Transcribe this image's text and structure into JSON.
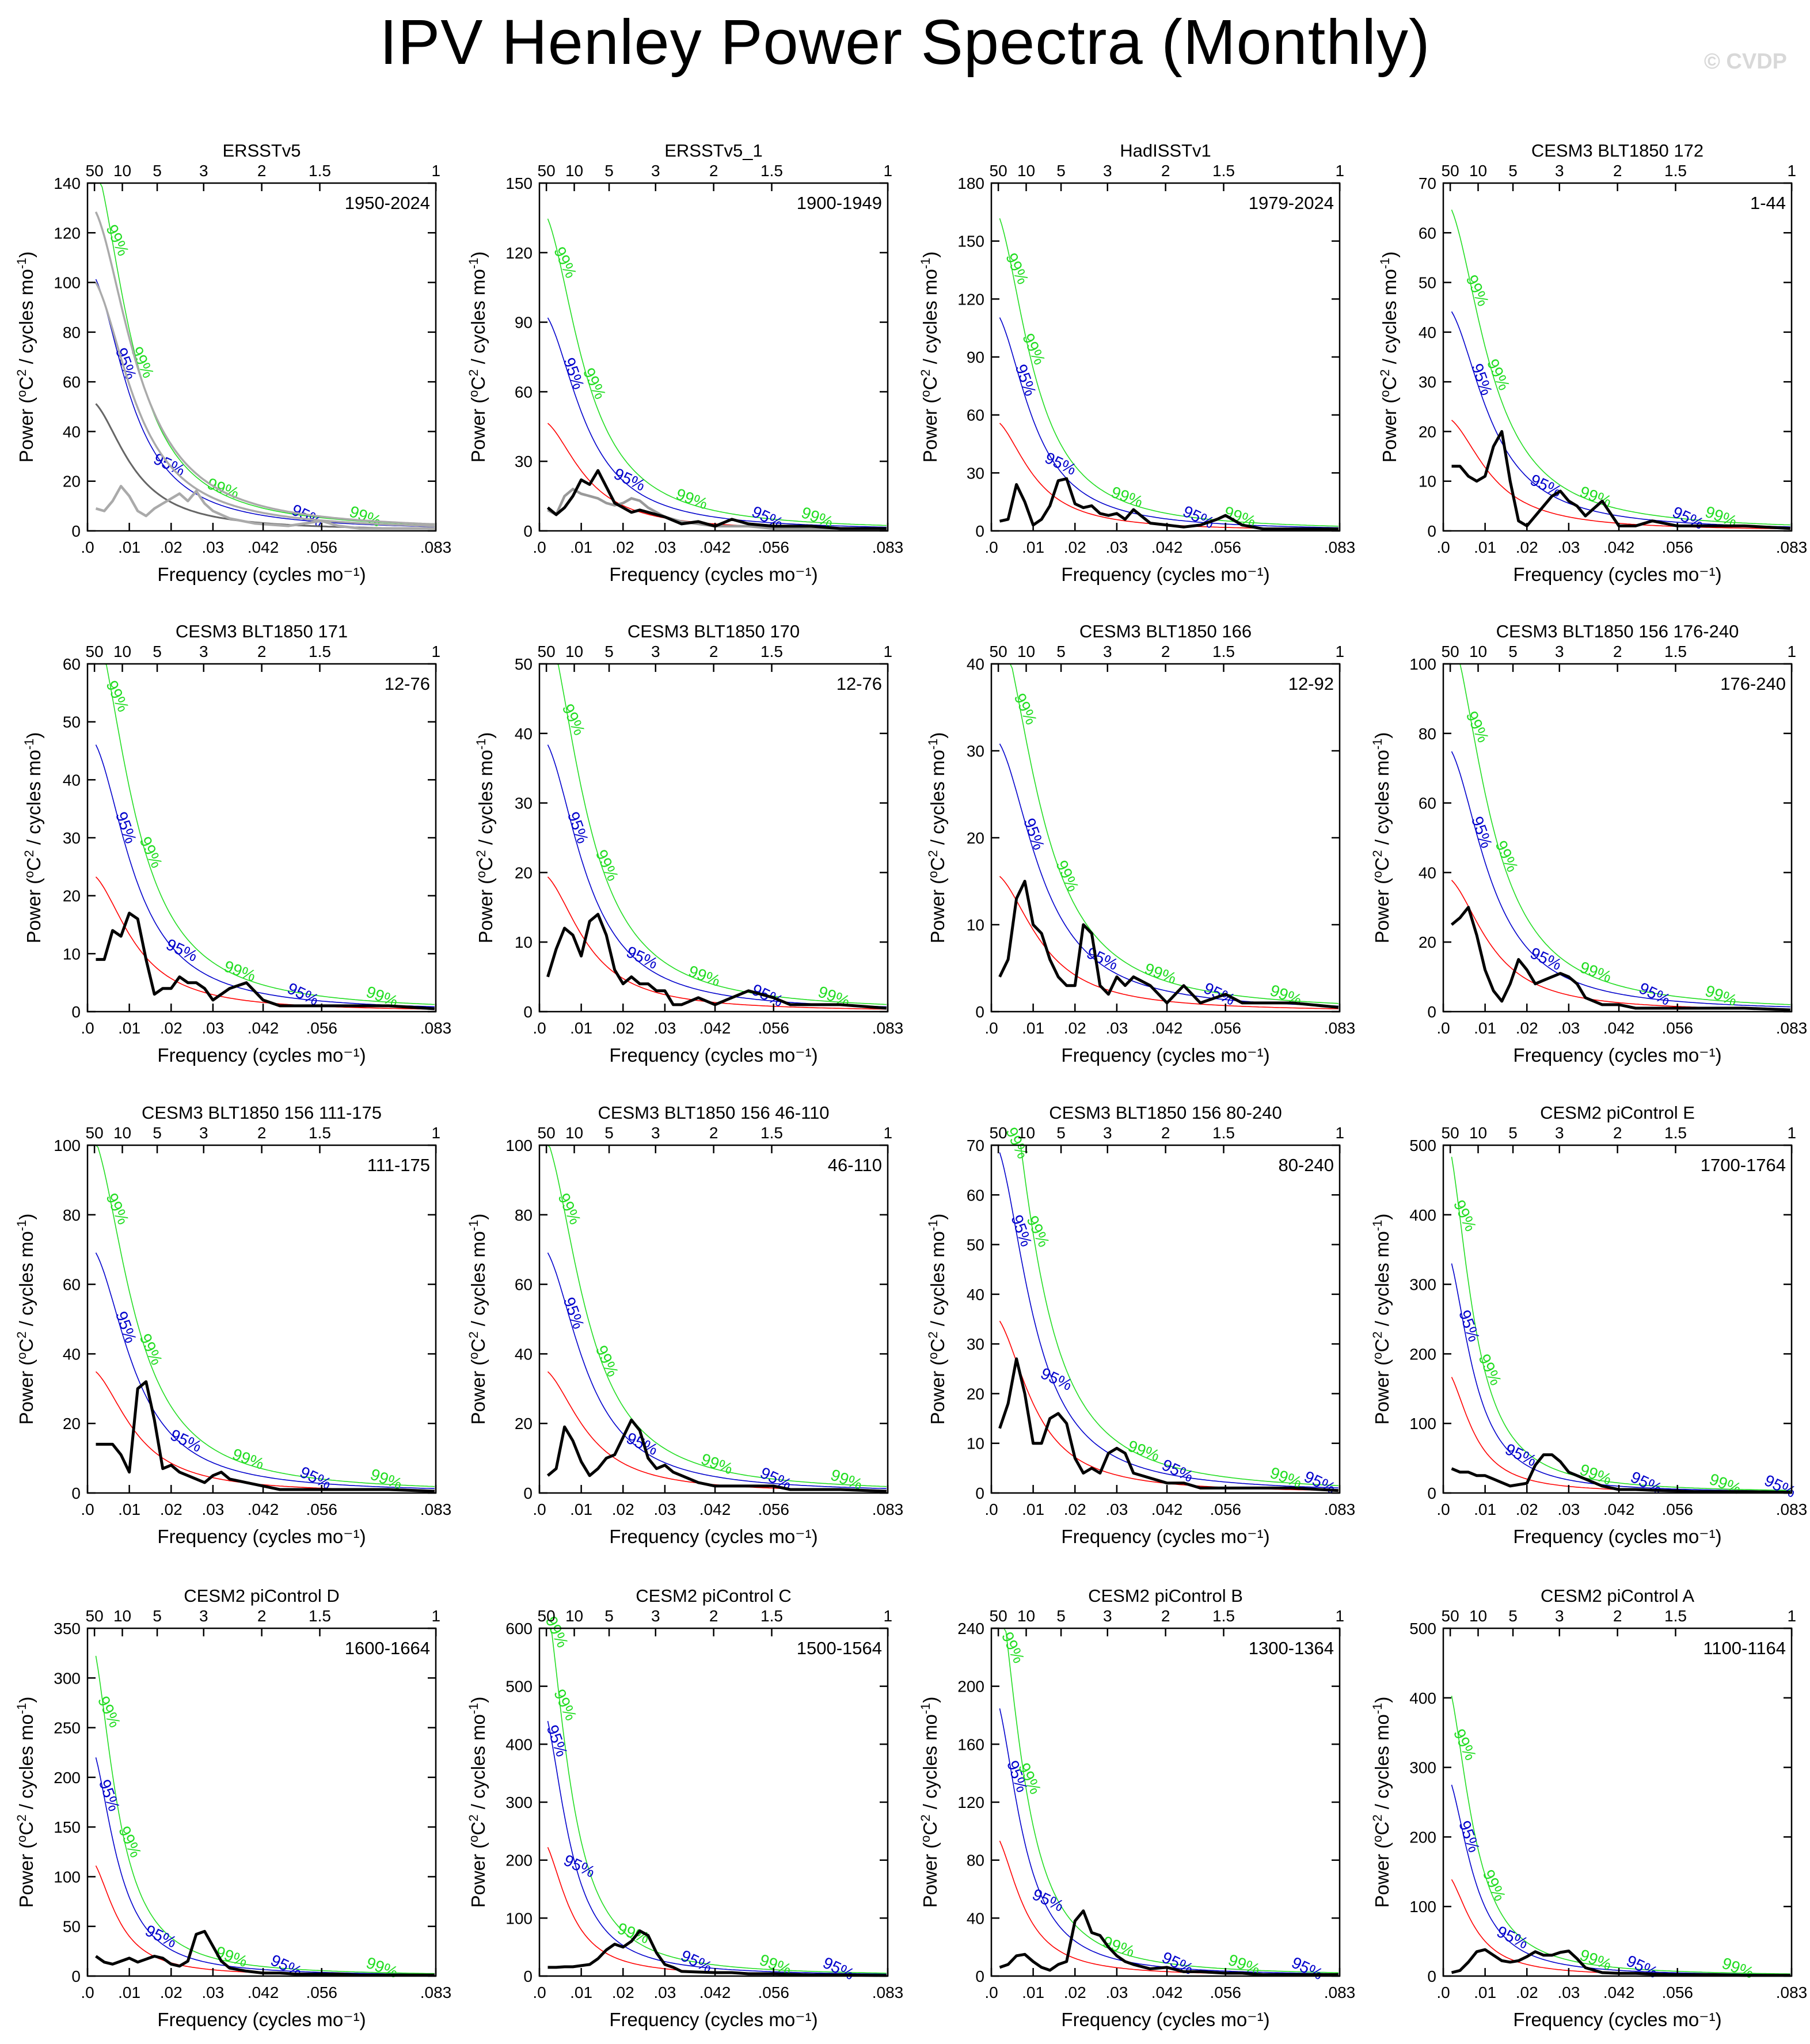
{
  "title": "IPV Henley Power Spectra (Monthly)",
  "watermark": "© CVDP",
  "colors": {
    "spectrum": "#000000",
    "obs_ref": "#999999",
    "red_noise": "#ff0000",
    "sig95": "#0000cc",
    "sig99": "#22dd22"
  },
  "common": {
    "xlabel": "Frequency (cycles mo⁻¹)",
    "ylabel_main": "Power (",
    "ylabel_sup": "o",
    "ylabel_mid": "C",
    "ylabel_sup2": "2",
    "ylabel_end": " / cycles mo",
    "ylabel_sup3": "-1",
    "ylabel_close": ")",
    "xlim": [
      0,
      0.0833
    ],
    "bottom_ticks": [
      {
        "v": 0,
        "t": ".0"
      },
      {
        "v": 0.01,
        "t": ".01"
      },
      {
        "v": 0.02,
        "t": ".02"
      },
      {
        "v": 0.03,
        "t": ".03"
      },
      {
        "v": 0.042,
        "t": ".042"
      },
      {
        "v": 0.056,
        "t": ".056"
      },
      {
        "v": 0.0833,
        "t": ".083"
      }
    ],
    "top_ticks": [
      {
        "period": 50,
        "t": "50"
      },
      {
        "period": 10,
        "t": "10"
      },
      {
        "period": 5,
        "t": "5"
      },
      {
        "period": 3,
        "t": "3"
      },
      {
        "period": 2,
        "t": "2"
      },
      {
        "period": 1.5,
        "t": "1.5"
      },
      {
        "period": 1,
        "t": "1"
      }
    ],
    "label_95": "95%",
    "label_99": "99%"
  },
  "chart_data": [
    {
      "type": "line",
      "title": "ERSSTv5",
      "period": "1950-2024",
      "ymax": 140,
      "ystep": 20,
      "rn": 53,
      "rn_k": 0.09,
      "obs": false,
      "multi_gray": true,
      "x": [
        0.002,
        0.004,
        0.006,
        0.008,
        0.01,
        0.012,
        0.014,
        0.016,
        0.018,
        0.02,
        0.022,
        0.024,
        0.026,
        0.028,
        0.03,
        0.034,
        0.04,
        0.048,
        0.056,
        0.06,
        0.065,
        0.072,
        0.083
      ],
      "values": [
        9,
        8,
        12,
        18,
        14,
        8,
        6,
        9,
        11,
        13,
        15,
        12,
        16,
        11,
        8,
        5,
        3,
        2,
        4,
        2,
        1,
        1,
        1
      ],
      "labels95": [
        0.008,
        0.019,
        0.052
      ],
      "labels99": [
        0.006,
        0.012,
        0.032,
        0.066
      ]
    },
    {
      "type": "line",
      "title": "ERSSTv5_1",
      "period": "1900-1949",
      "ymax": 150,
      "ystep": 30,
      "rn": 48,
      "rn_k": 0.085,
      "obs": true,
      "x": [
        0.002,
        0.004,
        0.006,
        0.008,
        0.01,
        0.012,
        0.014,
        0.016,
        0.018,
        0.02,
        0.022,
        0.024,
        0.026,
        0.028,
        0.03,
        0.034,
        0.038,
        0.042,
        0.046,
        0.05,
        0.056,
        0.06,
        0.065,
        0.072,
        0.083
      ],
      "values": [
        10,
        7,
        10,
        15,
        22,
        20,
        26,
        19,
        12,
        10,
        8,
        9,
        8,
        7,
        6,
        3,
        4,
        2,
        5,
        3,
        2,
        2,
        2,
        1,
        1
      ],
      "obs_values": [
        9,
        7,
        15,
        18,
        16,
        15,
        14,
        12,
        11,
        12,
        14,
        13,
        10,
        8,
        6,
        4,
        3,
        2,
        2,
        2,
        1,
        1,
        1,
        1,
        1
      ],
      "labels95": [
        0.007,
        0.021,
        0.054
      ],
      "labels99": [
        0.005,
        0.012,
        0.036,
        0.066
      ]
    },
    {
      "type": "line",
      "title": "HadISSTv1",
      "period": "1979-2024",
      "ymax": 180,
      "ystep": 30,
      "rn": 58,
      "rn_k": 0.1,
      "obs": false,
      "x": [
        0.002,
        0.004,
        0.006,
        0.008,
        0.01,
        0.012,
        0.014,
        0.016,
        0.018,
        0.02,
        0.022,
        0.024,
        0.026,
        0.028,
        0.03,
        0.032,
        0.034,
        0.038,
        0.042,
        0.046,
        0.05,
        0.054,
        0.056,
        0.06,
        0.065,
        0.072,
        0.083
      ],
      "values": [
        5,
        6,
        24,
        15,
        3,
        6,
        13,
        26,
        27,
        14,
        12,
        13,
        9,
        8,
        9,
        6,
        11,
        4,
        3,
        2,
        3,
        6,
        8,
        3,
        1,
        1,
        1
      ],
      "labels95": [
        0.007,
        0.016,
        0.049
      ],
      "labels99": [
        0.005,
        0.009,
        0.032,
        0.059
      ]
    },
    {
      "type": "line",
      "title": "CESM3 BLT1850 172",
      "period": "1-44",
      "ymax": 70,
      "ystep": 10,
      "rn": 23,
      "rn_k": 0.08,
      "obs": false,
      "x": [
        0.002,
        0.004,
        0.006,
        0.008,
        0.01,
        0.012,
        0.014,
        0.016,
        0.018,
        0.02,
        0.022,
        0.024,
        0.026,
        0.028,
        0.03,
        0.032,
        0.034,
        0.038,
        0.042,
        0.046,
        0.05,
        0.056,
        0.06,
        0.065,
        0.072,
        0.083
      ],
      "values": [
        13,
        13,
        11,
        10,
        11,
        17,
        20,
        10,
        2,
        1,
        3,
        5,
        7,
        8,
        6,
        5,
        3,
        6,
        1,
        1,
        2,
        1,
        1,
        1,
        1,
        0.5
      ],
      "labels95": [
        0.008,
        0.024,
        0.058
      ],
      "labels99": [
        0.007,
        0.012,
        0.036,
        0.066
      ]
    },
    {
      "type": "line",
      "title": "CESM3 BLT1850 171",
      "period": "12-76",
      "ymax": 60,
      "ystep": 10,
      "rn": 24,
      "rn_k": 0.08,
      "obs": false,
      "x": [
        0.002,
        0.004,
        0.006,
        0.008,
        0.01,
        0.012,
        0.014,
        0.016,
        0.018,
        0.02,
        0.022,
        0.024,
        0.026,
        0.028,
        0.03,
        0.032,
        0.034,
        0.038,
        0.042,
        0.046,
        0.05,
        0.056,
        0.06,
        0.065,
        0.072,
        0.083
      ],
      "values": [
        9,
        9,
        14,
        13,
        17,
        16,
        9,
        3,
        4,
        4,
        6,
        5,
        5,
        4,
        2,
        3,
        4,
        5,
        2,
        1,
        1,
        1,
        1,
        1,
        1,
        0.5
      ],
      "labels95": [
        0.008,
        0.022,
        0.051
      ],
      "labels99": [
        0.006,
        0.014,
        0.036,
        0.07
      ]
    },
    {
      "type": "line",
      "title": "CESM3 BLT1850 170",
      "period": "12-76",
      "ymax": 50,
      "ystep": 10,
      "rn": 20,
      "rn_k": 0.08,
      "obs": false,
      "x": [
        0.002,
        0.004,
        0.006,
        0.008,
        0.01,
        0.012,
        0.014,
        0.016,
        0.018,
        0.02,
        0.022,
        0.024,
        0.026,
        0.028,
        0.03,
        0.032,
        0.034,
        0.038,
        0.042,
        0.046,
        0.05,
        0.056,
        0.06,
        0.065,
        0.072,
        0.083
      ],
      "values": [
        5,
        9,
        12,
        11,
        8,
        13,
        14,
        11,
        6,
        4,
        5,
        4,
        4,
        3,
        3,
        1,
        1,
        2,
        1,
        2,
        3,
        2,
        1,
        1,
        1,
        0.5
      ],
      "labels95": [
        0.008,
        0.024,
        0.054
      ],
      "labels99": [
        0.007,
        0.015,
        0.039,
        0.07
      ]
    },
    {
      "type": "line",
      "title": "CESM3 BLT1850 166",
      "period": "12-92",
      "ymax": 40,
      "ystep": 10,
      "rn": 16,
      "rn_k": 0.07,
      "obs": false,
      "x": [
        0.002,
        0.004,
        0.006,
        0.008,
        0.01,
        0.012,
        0.014,
        0.016,
        0.018,
        0.02,
        0.022,
        0.024,
        0.026,
        0.028,
        0.03,
        0.032,
        0.034,
        0.038,
        0.042,
        0.046,
        0.05,
        0.056,
        0.06,
        0.065,
        0.072,
        0.083
      ],
      "values": [
        4,
        6,
        13,
        15,
        10,
        9,
        6,
        4,
        3,
        3,
        10,
        9,
        3,
        2,
        4,
        3,
        4,
        3,
        1,
        3,
        1,
        2,
        1,
        1,
        1,
        0.5
      ],
      "labels95": [
        0.009,
        0.026,
        0.054
      ],
      "labels99": [
        0.007,
        0.017,
        0.04,
        0.07
      ]
    },
    {
      "type": "line",
      "title": "CESM3 BLT1850 156 176-240",
      "period": "176-240",
      "ymax": 100,
      "ystep": 20,
      "rn": 39,
      "rn_k": 0.08,
      "obs": false,
      "x": [
        0.002,
        0.004,
        0.006,
        0.008,
        0.01,
        0.012,
        0.014,
        0.016,
        0.018,
        0.02,
        0.022,
        0.024,
        0.026,
        0.028,
        0.03,
        0.032,
        0.034,
        0.038,
        0.042,
        0.046,
        0.05,
        0.056,
        0.06,
        0.065,
        0.072,
        0.083
      ],
      "values": [
        25,
        27,
        30,
        22,
        12,
        6,
        3,
        8,
        15,
        12,
        8,
        9,
        10,
        11,
        10,
        8,
        4,
        2,
        2,
        1,
        1,
        1,
        1,
        1,
        1,
        0.5
      ],
      "labels95": [
        0.008,
        0.024,
        0.05
      ],
      "labels99": [
        0.007,
        0.014,
        0.036,
        0.066
      ]
    },
    {
      "type": "line",
      "title": "CESM3 BLT1850 156 111-175",
      "period": "111-175",
      "ymax": 100,
      "ystep": 20,
      "rn": 36,
      "rn_k": 0.08,
      "obs": false,
      "x": [
        0.002,
        0.004,
        0.006,
        0.008,
        0.01,
        0.012,
        0.014,
        0.016,
        0.018,
        0.02,
        0.022,
        0.024,
        0.026,
        0.028,
        0.03,
        0.032,
        0.034,
        0.038,
        0.042,
        0.046,
        0.05,
        0.056,
        0.06,
        0.065,
        0.072,
        0.083
      ],
      "values": [
        14,
        14,
        14,
        11,
        6,
        30,
        32,
        21,
        7,
        8,
        6,
        5,
        4,
        3,
        5,
        6,
        4,
        3,
        2,
        1,
        1,
        1,
        1,
        1,
        1,
        0.5
      ],
      "labels95": [
        0.008,
        0.023,
        0.054
      ],
      "labels99": [
        0.006,
        0.014,
        0.038,
        0.071
      ]
    },
    {
      "type": "line",
      "title": "CESM3 BLT1850 156 46-110",
      "period": "46-110",
      "ymax": 100,
      "ystep": 20,
      "rn": 36,
      "rn_k": 0.08,
      "obs": false,
      "x": [
        0.002,
        0.004,
        0.006,
        0.008,
        0.01,
        0.012,
        0.014,
        0.016,
        0.018,
        0.02,
        0.022,
        0.024,
        0.026,
        0.028,
        0.03,
        0.032,
        0.034,
        0.038,
        0.042,
        0.046,
        0.05,
        0.056,
        0.06,
        0.065,
        0.072,
        0.083
      ],
      "values": [
        5,
        7,
        19,
        15,
        9,
        5,
        7,
        10,
        11,
        16,
        21,
        18,
        10,
        7,
        8,
        6,
        5,
        3,
        2,
        2,
        2,
        2,
        1,
        1,
        1,
        0.5
      ],
      "labels95": [
        0.007,
        0.024,
        0.056
      ],
      "labels99": [
        0.006,
        0.015,
        0.042,
        0.073
      ]
    },
    {
      "type": "line",
      "title": "CESM3 BLT1850 156 80-240",
      "period": "80-240",
      "ymax": 70,
      "ystep": 10,
      "rn": 36,
      "rn_k": 0.1,
      "obs": false,
      "x": [
        0.002,
        0.004,
        0.006,
        0.008,
        0.01,
        0.012,
        0.014,
        0.016,
        0.018,
        0.02,
        0.022,
        0.024,
        0.026,
        0.028,
        0.03,
        0.032,
        0.034,
        0.038,
        0.042,
        0.046,
        0.05,
        0.056,
        0.06,
        0.065,
        0.072,
        0.083
      ],
      "values": [
        13,
        18,
        27,
        20,
        10,
        10,
        15,
        16,
        14,
        7,
        4,
        5,
        4,
        8,
        9,
        8,
        4,
        3,
        2,
        2,
        1,
        1,
        1,
        1,
        1,
        0.5
      ],
      "labels95": [
        0.006,
        0.015,
        0.044,
        0.078
      ],
      "labels99": [
        0.005,
        0.01,
        0.036,
        0.07
      ]
    },
    {
      "type": "line",
      "title": "CESM2 piControl E",
      "period": "1700-1764",
      "ymax": 500,
      "ystep": 100,
      "rn": 180,
      "rn_k": 0.2,
      "obs": false,
      "x": [
        0.002,
        0.004,
        0.006,
        0.008,
        0.01,
        0.012,
        0.014,
        0.016,
        0.018,
        0.02,
        0.022,
        0.024,
        0.026,
        0.028,
        0.03,
        0.032,
        0.034,
        0.038,
        0.042,
        0.046,
        0.05,
        0.056,
        0.06,
        0.065,
        0.072,
        0.083
      ],
      "values": [
        35,
        30,
        30,
        25,
        25,
        20,
        15,
        10,
        12,
        14,
        40,
        55,
        55,
        45,
        30,
        25,
        20,
        10,
        5,
        5,
        4,
        3,
        2,
        2,
        2,
        1
      ],
      "labels95": [
        0.005,
        0.018,
        0.048,
        0.08
      ],
      "labels99": [
        0.004,
        0.01,
        0.036,
        0.067
      ]
    },
    {
      "type": "line",
      "title": "CESM2 piControl D",
      "period": "1600-1664",
      "ymax": 350,
      "ystep": 50,
      "rn": 120,
      "rn_k": 0.2,
      "obs": false,
      "x": [
        0.002,
        0.004,
        0.006,
        0.008,
        0.01,
        0.012,
        0.014,
        0.016,
        0.018,
        0.02,
        0.022,
        0.024,
        0.026,
        0.028,
        0.03,
        0.032,
        0.034,
        0.038,
        0.042,
        0.046,
        0.05,
        0.056,
        0.06,
        0.065,
        0.072,
        0.083
      ],
      "values": [
        20,
        14,
        12,
        15,
        18,
        14,
        17,
        20,
        18,
        12,
        10,
        15,
        42,
        45,
        30,
        15,
        8,
        5,
        3,
        3,
        2,
        2,
        2,
        1,
        1,
        1
      ],
      "labels95": [
        0.004,
        0.017,
        0.047
      ],
      "labels99": [
        0.004,
        0.009,
        0.034,
        0.07
      ]
    },
    {
      "type": "line",
      "title": "CESM2 piControl C",
      "period": "1500-1564",
      "ymax": 600,
      "ystep": 100,
      "rn": 240,
      "rn_k": 0.2,
      "obs": false,
      "x": [
        0.002,
        0.004,
        0.006,
        0.008,
        0.01,
        0.012,
        0.014,
        0.016,
        0.018,
        0.02,
        0.022,
        0.024,
        0.026,
        0.028,
        0.03,
        0.032,
        0.034,
        0.038,
        0.042,
        0.046,
        0.05,
        0.056,
        0.06,
        0.065,
        0.072,
        0.083
      ],
      "values": [
        15,
        15,
        16,
        16,
        18,
        20,
        30,
        45,
        55,
        50,
        60,
        78,
        70,
        40,
        20,
        15,
        8,
        7,
        6,
        6,
        4,
        4,
        3,
        2,
        2,
        1
      ],
      "labels95": [
        0.003,
        0.009,
        0.037,
        0.071
      ],
      "labels99": [
        0.003,
        0.005,
        0.022,
        0.056
      ]
    },
    {
      "type": "line",
      "title": "CESM2 piControl B",
      "period": "1300-1364",
      "ymax": 240,
      "ystep": 40,
      "rn": 100,
      "rn_k": 0.18,
      "obs": false,
      "x": [
        0.002,
        0.004,
        0.006,
        0.008,
        0.01,
        0.012,
        0.014,
        0.016,
        0.018,
        0.02,
        0.022,
        0.024,
        0.026,
        0.028,
        0.03,
        0.032,
        0.034,
        0.038,
        0.042,
        0.046,
        0.05,
        0.056,
        0.06,
        0.065,
        0.072,
        0.083
      ],
      "values": [
        6,
        8,
        14,
        15,
        10,
        6,
        4,
        8,
        10,
        38,
        45,
        30,
        28,
        20,
        14,
        10,
        8,
        5,
        6,
        3,
        3,
        2,
        2,
        1,
        1,
        1
      ],
      "labels95": [
        0.005,
        0.013,
        0.044,
        0.075
      ],
      "labels99": [
        0.004,
        0.008,
        0.03,
        0.06
      ]
    },
    {
      "type": "line",
      "title": "CESM2 piControl A",
      "period": "1100-1164",
      "ymax": 500,
      "ystep": 100,
      "rn": 150,
      "rn_k": 0.2,
      "obs": false,
      "x": [
        0.002,
        0.004,
        0.006,
        0.008,
        0.01,
        0.012,
        0.014,
        0.016,
        0.018,
        0.02,
        0.022,
        0.024,
        0.026,
        0.028,
        0.03,
        0.032,
        0.034,
        0.038,
        0.042,
        0.046,
        0.05,
        0.056,
        0.06,
        0.065,
        0.072,
        0.083
      ],
      "values": [
        5,
        8,
        20,
        35,
        38,
        30,
        22,
        20,
        22,
        28,
        35,
        30,
        30,
        34,
        36,
        25,
        12,
        5,
        4,
        4,
        3,
        2,
        2,
        2,
        1,
        1
      ],
      "labels95": [
        0.005,
        0.016,
        0.047
      ],
      "labels99": [
        0.004,
        0.011,
        0.036,
        0.07
      ]
    }
  ]
}
